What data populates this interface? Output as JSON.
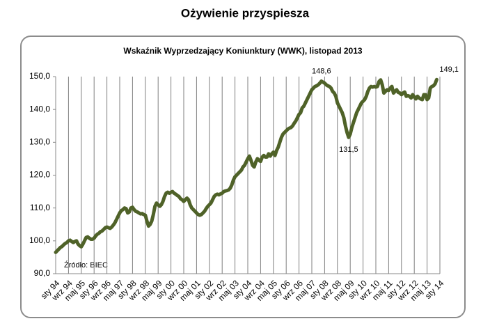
{
  "title": "Ożywienie przyspiesza",
  "chart_data": {
    "type": "line",
    "title": "Wskaźnik Wyprzedzający Koniunktury (WWK), listopad 2013",
    "source": "Źródło: BIEC",
    "categories": [
      "sty 94",
      null,
      null,
      null,
      null,
      null,
      null,
      null,
      "wrz 94",
      null,
      null,
      null,
      null,
      null,
      null,
      null,
      "maj 95",
      null,
      null,
      null,
      null,
      null,
      null,
      null,
      "sty 96",
      null,
      null,
      null,
      null,
      null,
      null,
      null,
      "wrz 96",
      null,
      null,
      null,
      null,
      null,
      null,
      null,
      "maj 97",
      null,
      null,
      null,
      null,
      null,
      null,
      null,
      "sty 98",
      null,
      null,
      null,
      null,
      null,
      null,
      null,
      "wrz 98",
      null,
      null,
      null,
      null,
      null,
      null,
      null,
      "maj 99",
      null,
      null,
      null,
      null,
      null,
      null,
      null,
      "sty 00",
      null,
      null,
      null,
      null,
      null,
      null,
      null,
      "wrz 00",
      null,
      null,
      null,
      null,
      null,
      null,
      null,
      "maj 01",
      null,
      null,
      null,
      null,
      null,
      null,
      null,
      "sty 02",
      null,
      null,
      null,
      null,
      null,
      null,
      null,
      "wrz 02",
      null,
      null,
      null,
      null,
      null,
      null,
      null,
      "maj 03",
      null,
      null,
      null,
      null,
      null,
      null,
      null,
      "sty 04",
      null,
      null,
      null,
      null,
      null,
      null,
      null,
      "wrz 04",
      null,
      null,
      null,
      null,
      null,
      null,
      null,
      "maj 05",
      null,
      null,
      null,
      null,
      null,
      null,
      null,
      "sty 06",
      null,
      null,
      null,
      null,
      null,
      null,
      null,
      "wrz 06",
      null,
      null,
      null,
      null,
      null,
      null,
      null,
      "maj 07",
      null,
      null,
      null,
      null,
      null,
      null,
      null,
      "sty 08",
      null,
      null,
      null,
      null,
      null,
      null,
      null,
      "wrz 08",
      null,
      null,
      null,
      null,
      null,
      null,
      null,
      "maj 09",
      null,
      null,
      null,
      null,
      null,
      null,
      null,
      "sty 10",
      null,
      null,
      null,
      null,
      null,
      null,
      null,
      "wrz 10",
      null,
      null,
      null,
      null,
      null,
      null,
      null,
      "maj 11",
      null,
      null,
      null,
      null,
      null,
      null,
      null,
      "sty 12",
      null,
      null,
      null,
      null,
      null,
      null,
      null,
      "wrz 12",
      null,
      null,
      null,
      null,
      null,
      null,
      null,
      "maj 13",
      null,
      null,
      null,
      null,
      null,
      null,
      null,
      "sty 14"
    ],
    "values": [
      96.5,
      97,
      97.5,
      98,
      98.3,
      98.8,
      99.2,
      99.5,
      100,
      100.2,
      99.8,
      99.5,
      99.8,
      100,
      99,
      98.5,
      98.2,
      99,
      100,
      101,
      101.2,
      100.8,
      100.5,
      100.5,
      100.8,
      101.5,
      102,
      102.3,
      102.8,
      103,
      103.5,
      104,
      104.2,
      104,
      103.8,
      104.2,
      104.8,
      105.5,
      106.5,
      107.5,
      108.5,
      109.2,
      109.5,
      110,
      109.8,
      108.5,
      108.8,
      110,
      110.2,
      109.5,
      109,
      108.8,
      108.5,
      108.2,
      108.3,
      108,
      107.8,
      106,
      104.5,
      105,
      106,
      108,
      110.5,
      111.5,
      111,
      110.5,
      111,
      112,
      113.5,
      114.5,
      114.8,
      114.5,
      114.8,
      115,
      114.5,
      114.2,
      113.8,
      113.5,
      112.8,
      112.5,
      112,
      112.5,
      113,
      112.5,
      111,
      110,
      109.5,
      109,
      108.5,
      108,
      107.8,
      108,
      108.5,
      109,
      109.8,
      110.5,
      111,
      111.5,
      112.5,
      113.5,
      114,
      114.2,
      114,
      114.3,
      114.5,
      115,
      115.2,
      115.3,
      115.5,
      116,
      117,
      118.5,
      119.5,
      120,
      120.5,
      121,
      121.5,
      122.5,
      123,
      124,
      125,
      125.8,
      124.5,
      123,
      122.5,
      124,
      125,
      124.5,
      124.2,
      125.5,
      126,
      125.5,
      125.5,
      126.5,
      125.8,
      126.5,
      127,
      126,
      127.5,
      128.5,
      130,
      131.5,
      132.5,
      133,
      133.5,
      134,
      134.3,
      134.5,
      135,
      135.8,
      136.5,
      137.5,
      138.5,
      139,
      140.5,
      141,
      142,
      143,
      144,
      145,
      146,
      146.5,
      147,
      147.2,
      147.5,
      148,
      148.6,
      148.3,
      148,
      147.5,
      147.2,
      147,
      146.5,
      145.5,
      145,
      144,
      142,
      141,
      140,
      139,
      137.5,
      135,
      133,
      131.5,
      132.5,
      134.5,
      136,
      137.5,
      139,
      140,
      141,
      142,
      142.5,
      143,
      144,
      145.5,
      146.5,
      147,
      146.8,
      147,
      146.8,
      147,
      148.5,
      149,
      147.5,
      145,
      145.5,
      146,
      145.8,
      146.5,
      147,
      145,
      145.5,
      146,
      145.2,
      145,
      144.5,
      145,
      145.3,
      144,
      144.2,
      144,
      143.5,
      144.5,
      143.8,
      143.2,
      144,
      143.5,
      143.2,
      143,
      144.5,
      144.5,
      143,
      143.5,
      146.5,
      147,
      147.2,
      147.8,
      149.1,
      null,
      null
    ],
    "value_labels": [
      null,
      null,
      null,
      null,
      null,
      null,
      null,
      null,
      null,
      null,
      null,
      null,
      null,
      null,
      null,
      null,
      null,
      null,
      null,
      null,
      null,
      null,
      null,
      null,
      null,
      null,
      null,
      null,
      null,
      null,
      null,
      null,
      null,
      null,
      null,
      null,
      null,
      null,
      null,
      null,
      null,
      null,
      null,
      null,
      null,
      null,
      null,
      null,
      null,
      null,
      null,
      null,
      null,
      null,
      null,
      null,
      null,
      null,
      null,
      null,
      null,
      null,
      null,
      null,
      null,
      null,
      null,
      null,
      null,
      null,
      null,
      null,
      null,
      null,
      null,
      null,
      null,
      null,
      null,
      null,
      null,
      null,
      null,
      null,
      null,
      null,
      null,
      null,
      null,
      null,
      null,
      null,
      null,
      null,
      null,
      null,
      null,
      null,
      null,
      null,
      null,
      null,
      null,
      null,
      null,
      null,
      null,
      null,
      null,
      null,
      null,
      null,
      null,
      null,
      null,
      null,
      null,
      null,
      null,
      null,
      null,
      null,
      null,
      null,
      null,
      null,
      null,
      null,
      null,
      null,
      null,
      null,
      null,
      null,
      null,
      null,
      null,
      null,
      null,
      null,
      null,
      null,
      null,
      null,
      null,
      null,
      null,
      null,
      null,
      null,
      null,
      null,
      null,
      null,
      null,
      null,
      null,
      null,
      null,
      null,
      null,
      null,
      null,
      null,
      null,
      null,
      "148,6",
      null,
      null,
      null,
      null,
      null,
      null,
      null,
      null,
      null,
      null,
      null,
      null,
      null,
      null,
      null,
      null,
      "131,5",
      null,
      null,
      null,
      null,
      null,
      null,
      null,
      null,
      null,
      null,
      null,
      null,
      null,
      null,
      null,
      null,
      null,
      null,
      null,
      null,
      null,
      null,
      null,
      null,
      null,
      null,
      null,
      null,
      null,
      null,
      null,
      null,
      null,
      null,
      null,
      null,
      null,
      null,
      null,
      null,
      null,
      null,
      null,
      null,
      null,
      null,
      null,
      null,
      null,
      null,
      null,
      null,
      null,
      null,
      "149,1",
      null,
      null
    ],
    "color": "#4f6228",
    "ylim": [
      90,
      150
    ],
    "yticks": [
      {
        "value": 90,
        "label": "90,0"
      },
      {
        "value": 100,
        "label": "100,0"
      },
      {
        "value": 110,
        "label": "110,0"
      },
      {
        "value": 120,
        "label": "120,0"
      },
      {
        "value": 130,
        "label": "130,0"
      },
      {
        "value": 140,
        "label": "140,0"
      },
      {
        "value": 150,
        "label": "150,0"
      }
    ],
    "grid": "x"
  }
}
